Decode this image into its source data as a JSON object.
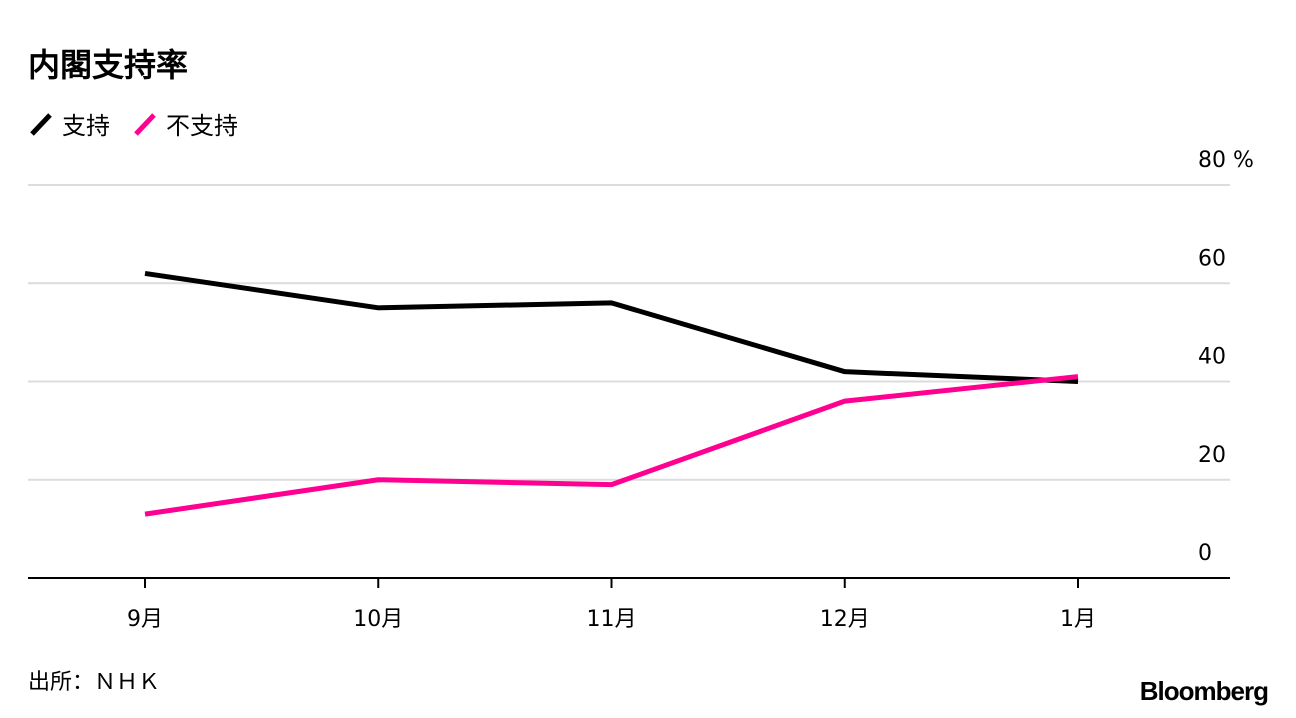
{
  "chart_data": {
    "type": "line",
    "title": "内閣支持率",
    "categories": [
      "9月",
      "10月",
      "11月",
      "12月",
      "1月"
    ],
    "series": [
      {
        "name": "支持",
        "color": "#000000",
        "values": [
          62,
          55,
          56,
          42,
          40
        ]
      },
      {
        "name": "不支持",
        "color": "#ff0090",
        "values": [
          13,
          20,
          19,
          36,
          41
        ]
      }
    ],
    "yticks": [
      "0",
      "20",
      "40",
      "60",
      "80 %"
    ],
    "ytick_values": [
      0,
      20,
      40,
      60,
      80
    ],
    "ylim": [
      0,
      80
    ],
    "grid": true,
    "legend_position": "top-left",
    "yaxis_side": "right"
  },
  "source": "出所：ＮＨＫ",
  "logo": "Bloomberg"
}
